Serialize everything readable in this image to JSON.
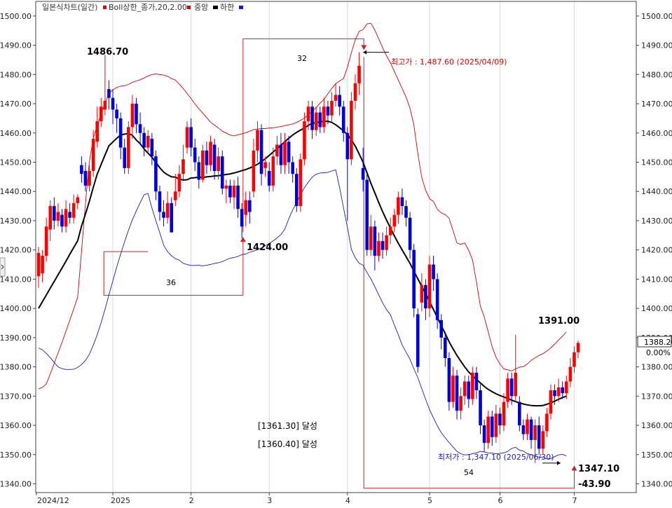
{
  "legend": {
    "title": "일본식차트(일간)",
    "boll_upper": "Boll상한_종가,20,2.00",
    "middle": "중앙",
    "lower": "하한"
  },
  "colors": {
    "up": "#ff0000",
    "down": "#0000dd",
    "boll_upper": "#d40000",
    "middle": "#000000",
    "lower": "#1a1acc",
    "annotation_box": "#cc2222",
    "grid": "#d8d8d8",
    "axis": "#555555"
  },
  "annotations": {
    "high_label": "1486.70",
    "local_low_label": "1424.00",
    "recent_high_label": "1391.00",
    "low_label": "1347.10",
    "change_label": "-43.90",
    "period_box1": "36",
    "period_box2": "32",
    "period_box3": "54",
    "max_note": "최고가 : 1,487.60 (2025/04/09)",
    "min_note": "최저가 : 1,347.10 (2025/06/30)",
    "achieve1": "[1361.30] 달성",
    "achieve2": "[1360.40] 달성",
    "current_price": "1388.20",
    "current_change": "0.00%"
  },
  "chart_data": {
    "type": "candlestick",
    "ylim": [
      1337,
      1505
    ],
    "yticks": [
      "1340.00",
      "1350.00",
      "1360.00",
      "1370.00",
      "1380.00",
      "1390.00",
      "1400.00",
      "1410.00",
      "1420.00",
      "1430.00",
      "1440.00",
      "1450.00",
      "1460.00",
      "1470.00",
      "1480.00",
      "1490.00",
      "1500.00"
    ],
    "x_labels": [
      {
        "label": "2024/12",
        "index": 0
      },
      {
        "label": "2025",
        "index": 19
      },
      {
        "label": "2",
        "index": 39
      },
      {
        "label": "3",
        "index": 59
      },
      {
        "label": "4",
        "index": 79
      },
      {
        "label": "5",
        "index": 100
      },
      {
        "label": "6",
        "index": 118
      },
      {
        "label": "7",
        "index": 137
      }
    ],
    "candles": [
      [
        1411.0,
        1419.0,
        1421.0,
        1407.0
      ],
      [
        1412.0,
        1418.0,
        1420.0,
        1409.0
      ],
      [
        1418.0,
        1428.0,
        1431.0,
        1416.0
      ],
      [
        1427.0,
        1435.0,
        1437.0,
        1423.0
      ],
      [
        1435.0,
        1430.0,
        1438.0,
        1427.0
      ],
      [
        1430.0,
        1433.0,
        1436.0,
        1428.0
      ],
      [
        1432.0,
        1428.0,
        1434.0,
        1426.0
      ],
      [
        1428.0,
        1434.0,
        1437.0,
        1426.0
      ],
      [
        1433.0,
        1431.0,
        1436.0,
        1429.0
      ],
      [
        1431.0,
        1436.0,
        1439.0,
        1429.0
      ],
      [
        1436.0,
        1438.0,
        1439.0,
        1434.0
      ],
      [
        1449.0,
        1446.0,
        1452.0,
        1443.0
      ],
      [
        1447.0,
        1442.0,
        1450.0,
        1440.0
      ],
      [
        1442.0,
        1447.0,
        1449.0,
        1440.0
      ],
      [
        1447.0,
        1458.0,
        1461.0,
        1445.0
      ],
      [
        1457.0,
        1464.0,
        1469.0,
        1455.0
      ],
      [
        1464.0,
        1469.0,
        1472.0,
        1462.0
      ],
      [
        1468.0,
        1471.0,
        1486.7,
        1466.0
      ],
      [
        1475.0,
        1472.0,
        1478.0,
        1468.0
      ],
      [
        1472.0,
        1468.0,
        1475.0,
        1463.0
      ],
      [
        1468.0,
        1465.0,
        1470.0,
        1460.0
      ],
      [
        1465.0,
        1455.0,
        1467.0,
        1451.0
      ],
      [
        1455.0,
        1448.0,
        1458.0,
        1446.0
      ],
      [
        1448.0,
        1462.0,
        1464.0,
        1446.0
      ],
      [
        1462.0,
        1470.0,
        1473.0,
        1458.0
      ],
      [
        1470.0,
        1463.0,
        1472.0,
        1460.0
      ],
      [
        1463.0,
        1460.0,
        1467.0,
        1456.0
      ],
      [
        1460.0,
        1455.0,
        1462.0,
        1452.0
      ],
      [
        1455.0,
        1459.0,
        1461.0,
        1453.0
      ],
      [
        1458.0,
        1452.0,
        1460.0,
        1449.0
      ],
      [
        1452.0,
        1440.0,
        1454.0,
        1437.0
      ],
      [
        1440.0,
        1433.0,
        1442.0,
        1430.0
      ],
      [
        1433.0,
        1431.0,
        1437.0,
        1428.0
      ],
      [
        1431.0,
        1436.0,
        1440.0,
        1429.0
      ],
      [
        1436.0,
        1426.0,
        1438.0,
        1426.0
      ],
      [
        1437.0,
        1440.0,
        1446.0,
        1435.0
      ],
      [
        1440.0,
        1446.0,
        1449.0,
        1438.0
      ],
      [
        1446.0,
        1451.0,
        1456.0,
        1444.0
      ],
      [
        1455.0,
        1462.0,
        1464.0,
        1453.0
      ],
      [
        1462.0,
        1455.0,
        1465.0,
        1452.0
      ],
      [
        1455.0,
        1450.0,
        1458.0,
        1447.0
      ],
      [
        1450.0,
        1444.0,
        1452.0,
        1441.0
      ],
      [
        1444.0,
        1454.0,
        1456.0,
        1443.0
      ],
      [
        1454.0,
        1449.0,
        1457.0,
        1446.0
      ],
      [
        1449.0,
        1457.0,
        1459.0,
        1447.0
      ],
      [
        1456.0,
        1447.0,
        1458.0,
        1444.0
      ],
      [
        1447.0,
        1452.0,
        1455.0,
        1444.0
      ],
      [
        1452.0,
        1441.0,
        1454.0,
        1439.0
      ],
      [
        1441.0,
        1442.0,
        1444.0,
        1436.0
      ],
      [
        1442.0,
        1438.0,
        1444.0,
        1436.0
      ],
      [
        1438.0,
        1442.0,
        1444.0,
        1434.0
      ],
      [
        1442.0,
        1434.0,
        1445.0,
        1431.0
      ],
      [
        1434.0,
        1428.0,
        1436.0,
        1424.0
      ],
      [
        1432.0,
        1437.0,
        1440.0,
        1428.0
      ],
      [
        1437.0,
        1433.0,
        1440.0,
        1429.0
      ],
      [
        1440.0,
        1454.0,
        1458.0,
        1438.0
      ],
      [
        1454.0,
        1461.0,
        1464.0,
        1450.0
      ],
      [
        1461.0,
        1446.0,
        1463.0,
        1442.0
      ],
      [
        1448.0,
        1450.0,
        1452.0,
        1445.0
      ],
      [
        1447.0,
        1442.0,
        1450.0,
        1440.0
      ],
      [
        1442.0,
        1452.0,
        1455.0,
        1440.0
      ],
      [
        1452.0,
        1456.0,
        1459.0,
        1449.0
      ],
      [
        1456.0,
        1449.0,
        1460.0,
        1446.0
      ],
      [
        1449.0,
        1457.0,
        1460.0,
        1446.0
      ],
      [
        1457.0,
        1450.0,
        1459.0,
        1446.0
      ],
      [
        1450.0,
        1446.0,
        1452.0,
        1443.0
      ],
      [
        1446.0,
        1435.0,
        1448.0,
        1433.0
      ],
      [
        1435.0,
        1451.0,
        1453.0,
        1433.0
      ],
      [
        1451.0,
        1464.0,
        1467.0,
        1449.0
      ],
      [
        1464.0,
        1469.0,
        1471.0,
        1461.0
      ],
      [
        1469.0,
        1461.0,
        1471.0,
        1458.0
      ],
      [
        1461.0,
        1467.0,
        1469.0,
        1459.0
      ],
      [
        1467.0,
        1462.0,
        1469.0,
        1460.0
      ],
      [
        1462.0,
        1469.0,
        1472.0,
        1460.0
      ],
      [
        1469.0,
        1466.0,
        1471.0,
        1463.0
      ],
      [
        1466.0,
        1471.0,
        1474.0,
        1464.0
      ],
      [
        1471.0,
        1473.0,
        1477.0,
        1469.0
      ],
      [
        1473.0,
        1469.0,
        1476.0,
        1466.0
      ],
      [
        1469.0,
        1460.0,
        1471.0,
        1457.0
      ],
      [
        1460.0,
        1451.0,
        1462.0,
        1430.0
      ],
      [
        1451.0,
        1471.0,
        1474.0,
        1449.0
      ],
      [
        1471.0,
        1477.0,
        1480.0,
        1468.0
      ],
      [
        1477.0,
        1483.0,
        1487.6,
        1473.0
      ],
      [
        1448.0,
        1444.0,
        1455.0,
        1440.0
      ],
      [
        1444.0,
        1420.0,
        1446.0,
        1418.0
      ],
      [
        1420.0,
        1428.0,
        1432.0,
        1418.0
      ],
      [
        1428.0,
        1418.0,
        1430.0,
        1413.0
      ],
      [
        1418.0,
        1423.0,
        1426.0,
        1416.0
      ],
      [
        1423.0,
        1420.0,
        1426.0,
        1417.0
      ],
      [
        1420.0,
        1425.0,
        1428.0,
        1418.0
      ],
      [
        1425.0,
        1428.0,
        1431.0,
        1422.0
      ],
      [
        1428.0,
        1432.0,
        1434.0,
        1426.0
      ],
      [
        1432.0,
        1438.0,
        1440.0,
        1429.0
      ],
      [
        1438.0,
        1435.0,
        1441.0,
        1432.0
      ],
      [
        1435.0,
        1431.0,
        1437.0,
        1428.0
      ],
      [
        1431.0,
        1420.0,
        1433.0,
        1417.0
      ],
      [
        1420.0,
        1400.0,
        1422.0,
        1397.0
      ],
      [
        1398.0,
        1380.0,
        1400.0,
        1378.0
      ],
      [
        1402.0,
        1408.0,
        1412.0,
        1399.0
      ],
      [
        1408.0,
        1400.0,
        1410.0,
        1396.0
      ],
      [
        1400.0,
        1415.0,
        1418.0,
        1397.0
      ],
      [
        1415.0,
        1410.0,
        1418.0,
        1406.0
      ],
      [
        1410.0,
        1396.0,
        1412.0,
        1393.0
      ],
      [
        1396.0,
        1390.0,
        1398.0,
        1386.0
      ],
      [
        1390.0,
        1383.0,
        1392.0,
        1380.0
      ],
      [
        1383.0,
        1368.0,
        1385.0,
        1365.0
      ],
      [
        1368.0,
        1377.0,
        1380.0,
        1366.0
      ],
      [
        1377.0,
        1365.0,
        1379.0,
        1362.0
      ],
      [
        1365.0,
        1370.0,
        1373.0,
        1362.0
      ],
      [
        1370.0,
        1375.0,
        1377.0,
        1367.0
      ],
      [
        1375.0,
        1369.0,
        1377.0,
        1366.0
      ],
      [
        1369.0,
        1378.0,
        1380.0,
        1367.0
      ],
      [
        1378.0,
        1372.0,
        1380.0,
        1369.0
      ],
      [
        1372.0,
        1360.0,
        1374.0,
        1357.0
      ],
      [
        1360.0,
        1354.0,
        1362.0,
        1351.0
      ],
      [
        1354.0,
        1363.0,
        1365.0,
        1352.0
      ],
      [
        1363.0,
        1356.0,
        1365.0,
        1353.0
      ],
      [
        1356.0,
        1364.0,
        1367.0,
        1354.0
      ],
      [
        1364.0,
        1360.0,
        1366.0,
        1357.0
      ],
      [
        1360.0,
        1368.0,
        1371.0,
        1358.0
      ],
      [
        1368.0,
        1376.0,
        1378.0,
        1366.0
      ],
      [
        1376.0,
        1370.0,
        1378.0,
        1367.0
      ],
      [
        1370.0,
        1378.0,
        1391.0,
        1368.0
      ],
      [
        1368.0,
        1360.0,
        1370.0,
        1358.0
      ],
      [
        1360.0,
        1357.0,
        1362.0,
        1355.0
      ],
      [
        1357.0,
        1362.0,
        1364.0,
        1355.0
      ],
      [
        1362.0,
        1355.0,
        1363.0,
        1352.0
      ],
      [
        1355.0,
        1360.0,
        1362.0,
        1347.1
      ],
      [
        1360.0,
        1352.0,
        1363.0,
        1350.0
      ],
      [
        1352.0,
        1358.0,
        1360.0,
        1350.0
      ],
      [
        1358.0,
        1364.0,
        1366.0,
        1356.0
      ],
      [
        1364.0,
        1372.0,
        1374.0,
        1362.0
      ],
      [
        1372.0,
        1370.0,
        1374.0,
        1367.0
      ],
      [
        1370.0,
        1373.0,
        1376.0,
        1368.0
      ],
      [
        1373.0,
        1371.0,
        1375.0,
        1369.0
      ],
      [
        1371.0,
        1375.0,
        1377.0,
        1369.0
      ],
      [
        1375.0,
        1380.0,
        1383.0,
        1373.0
      ],
      [
        1380.0,
        1385.0,
        1387.0,
        1378.0
      ],
      [
        1385.0,
        1388.2,
        1389.0,
        1383.0
      ]
    ],
    "boll_upper": [
      1372.5,
      1373.0,
      1374.2,
      1377.6,
      1381.2,
      1384.8,
      1388.4,
      1392.2,
      1396.0,
      1399.8,
      1403.8,
      1419.7,
      1436.1,
      1450.1,
      1458.2,
      1462.6,
      1466.5,
      1470.2,
      1473.6,
      1474.7,
      1475.6,
      1476.0,
      1476.2,
      1476.6,
      1477.3,
      1477.8,
      1478.2,
      1478.8,
      1479.5,
      1480.0,
      1480.2,
      1480.0,
      1479.8,
      1479.4,
      1478.6,
      1478.1,
      1476.7,
      1475.2,
      1473.5,
      1471.8,
      1469.9,
      1468.3,
      1466.8,
      1465.3,
      1463.7,
      1462.7,
      1461.7,
      1460.6,
      1460.0,
      1459.3,
      1459.0,
      1459.4,
      1459.7,
      1460.1,
      1460.6,
      1461.2,
      1461.3,
      1461.5,
      1461.5,
      1461.7,
      1461.8,
      1462.0,
      1462.2,
      1462.5,
      1462.8,
      1463.1,
      1463.6,
      1464.3,
      1465.1,
      1466.2,
      1467.4,
      1468.7,
      1470.2,
      1471.5,
      1473.4,
      1475.2,
      1476.9,
      1477.8,
      1478.6,
      1482.5,
      1487.4,
      1491.9,
      1494.8,
      1495.4,
      1497.3,
      1497.5,
      1495.2,
      1492.2,
      1489.2,
      1486.4,
      1484.0,
      1481.0,
      1478.1,
      1475.2,
      1472.3,
      1468.4,
      1462.6,
      1452.9,
      1444.9,
      1440.4,
      1437.5,
      1436.6,
      1433.9,
      1432.7,
      1432.1,
      1430.8,
      1426.6,
      1422.4,
      1421.9,
      1422.4,
      1419.9,
      1416.5,
      1408.9,
      1400.8,
      1397.0,
      1392.0,
      1386.9,
      1383.3,
      1381.0,
      1379.3,
      1379.0,
      1378.6,
      1379.3,
      1379.9,
      1380.1,
      1381.0,
      1382.2,
      1383.1,
      1383.9,
      1384.5,
      1385.4,
      1386.5,
      1387.8,
      1389.2,
      1390.5,
      1392.0
    ],
    "middle": [
      1400.0,
      1402.3,
      1404.6,
      1406.9,
      1409.2,
      1411.5,
      1413.8,
      1416.1,
      1418.5,
      1420.8,
      1423.1,
      1428.2,
      1432.3,
      1436.6,
      1441.4,
      1445.9,
      1449.2,
      1452.5,
      1455.6,
      1456.9,
      1458.2,
      1459.3,
      1459.6,
      1459.8,
      1459.2,
      1457.6,
      1456.3,
      1454.5,
      1453.1,
      1451.7,
      1449.9,
      1448.1,
      1446.6,
      1445.7,
      1445.0,
      1444.9,
      1444.2,
      1443.9,
      1444.0,
      1444.6,
      1444.7,
      1444.9,
      1444.8,
      1445.0,
      1445.1,
      1445.3,
      1445.4,
      1445.6,
      1445.8,
      1446.0,
      1446.3,
      1446.7,
      1447.1,
      1447.5,
      1448.0,
      1448.6,
      1449.3,
      1450.2,
      1451.2,
      1452.3,
      1453.5,
      1454.6,
      1455.8,
      1457.0,
      1458.2,
      1459.3,
      1460.2,
      1461.0,
      1461.7,
      1462.6,
      1463.3,
      1463.5,
      1463.8,
      1464.0,
      1464.0,
      1463.6,
      1462.8,
      1461.8,
      1460.7,
      1459.4,
      1457.7,
      1455.5,
      1452.8,
      1450.0,
      1446.4,
      1442.8,
      1439.5,
      1436.2,
      1433.1,
      1430.2,
      1427.5,
      1424.8,
      1422.3,
      1420.0,
      1417.7,
      1415.4,
      1412.7,
      1410.1,
      1407.6,
      1405.1,
      1402.4,
      1399.6,
      1396.9,
      1394.1,
      1391.4,
      1388.6,
      1386.2,
      1383.9,
      1381.9,
      1380.0,
      1378.3,
      1376.9,
      1375.7,
      1374.5,
      1373.3,
      1372.3,
      1371.5,
      1370.8,
      1370.2,
      1369.7,
      1369.2,
      1368.6,
      1368.1,
      1367.7,
      1367.3,
      1367.0,
      1366.8,
      1366.7,
      1366.7,
      1366.8,
      1367.2,
      1367.7,
      1368.3,
      1368.9,
      1369.5,
      1370.0
    ],
    "lower": [
      1386.5,
      1385.8,
      1384.6,
      1383.1,
      1381.5,
      1380.0,
      1379.4,
      1379.1,
      1379.1,
      1379.2,
      1379.8,
      1380.8,
      1382.2,
      1384.3,
      1387.4,
      1391.0,
      1395.1,
      1399.7,
      1404.6,
      1409.4,
      1414.2,
      1418.6,
      1422.8,
      1426.7,
      1430.3,
      1433.3,
      1436.2,
      1438.9,
      1439.3,
      1434.3,
      1430.0,
      1425.9,
      1421.6,
      1419.4,
      1418.0,
      1417.0,
      1416.5,
      1415.4,
      1415.0,
      1414.7,
      1414.7,
      1414.8,
      1414.5,
      1414.8,
      1415.0,
      1415.4,
      1415.6,
      1416.0,
      1416.6,
      1417.2,
      1417.4,
      1417.8,
      1418.4,
      1418.6,
      1419.2,
      1419.6,
      1420.1,
      1420.6,
      1421.4,
      1422.2,
      1423.1,
      1424.1,
      1425.3,
      1427.1,
      1430.6,
      1433.7,
      1436.3,
      1438.9,
      1441.3,
      1443.2,
      1444.9,
      1445.9,
      1446.3,
      1446.4,
      1446.5,
      1447.0,
      1447.4,
      1441.3,
      1434.4,
      1427.7,
      1420.2,
      1417.3,
      1415.4,
      1414.8,
      1412.3,
      1410.1,
      1407.4,
      1404.6,
      1401.9,
      1399.6,
      1397.8,
      1394.3,
      1391.0,
      1387.5,
      1385.0,
      1382.6,
      1379.3,
      1376.3,
      1372.6,
      1368.9,
      1365.4,
      1362.5,
      1359.8,
      1357.5,
      1355.8,
      1354.1,
      1352.6,
      1351.1,
      1350.3,
      1349.9,
      1350.0,
      1350.3,
      1350.6,
      1351.1,
      1350.9,
      1350.6,
      1350.5,
      1350.3,
      1350.4,
      1350.6,
      1351.1,
      1352.1,
      1352.5,
      1351.5,
      1351.2,
      1350.3,
      1350.0,
      1349.6,
      1349.1,
      1349.0,
      1348.5,
      1348.6,
      1349.3,
      1349.9,
      1350.1,
      1349.5
    ]
  }
}
